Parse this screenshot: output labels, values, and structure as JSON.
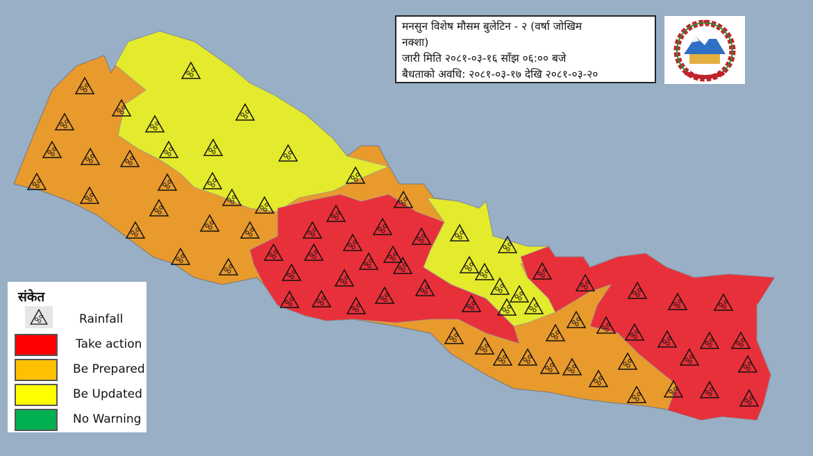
{
  "bulletin": {
    "title_line1": "मनसुन  विशेष मौसम बुलेटिन - २ (वर्षा जोखिम",
    "title_line2": "नक्शा)",
    "issued": "जारी मिति २०८१-०३-१६ साँझ ०६:०० बजे",
    "validity": "बैधताको अवधि: २०८१-०३-१७ देखि २०८१-०३-२०"
  },
  "emblem": {
    "icon": "nepal-government-emblem"
  },
  "legend": {
    "title": "संकेत",
    "items": [
      {
        "label": "Rainfall",
        "icon": "rainfall-triangle-icon"
      },
      {
        "label": "Take action",
        "color": "#ff0000"
      },
      {
        "label": "Be Prepared",
        "color": "#ffc000"
      },
      {
        "label": "Be Updated",
        "color": "#ffff00"
      },
      {
        "label": "No Warning",
        "color": "#00b050"
      }
    ]
  },
  "map": {
    "background": "#98afc6",
    "zone_colors": {
      "take_action": "#e8303a",
      "be_prepared": "#e89a2c",
      "be_updated": "#e4ea2c"
    },
    "regions": [
      {
        "name": "far-west",
        "level": "be_prepared"
      },
      {
        "name": "north-west",
        "level": "be_updated"
      },
      {
        "name": "central-west",
        "level": "take_action"
      },
      {
        "name": "central",
        "level": "be_updated"
      },
      {
        "name": "east",
        "level": "take_action"
      }
    ]
  }
}
